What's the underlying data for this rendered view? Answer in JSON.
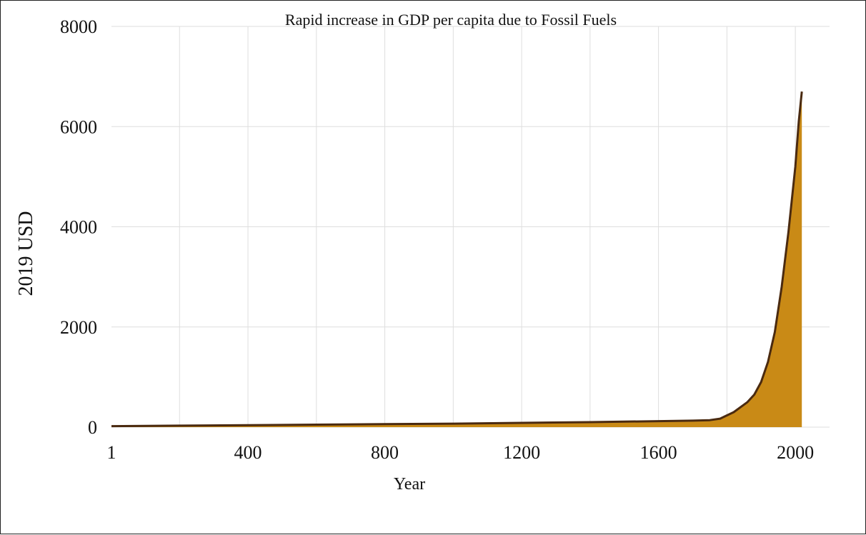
{
  "chart_data": {
    "type": "area",
    "title": "Rapid increase in GDP per capita due to Fossil Fuels",
    "xlabel": "Year",
    "ylabel": "2019 USD",
    "xlim": [
      1,
      2100
    ],
    "ylim": [
      0,
      8000
    ],
    "x_ticks": [
      1,
      400,
      800,
      1200,
      1600,
      2000
    ],
    "y_ticks": [
      0,
      2000,
      4000,
      6000,
      8000
    ],
    "grid": true,
    "series": [
      {
        "x": [
          1,
          200,
          400,
          600,
          800,
          1000,
          1200,
          1400,
          1600,
          1700,
          1750,
          1780,
          1820,
          1860,
          1880,
          1900,
          1920,
          1940,
          1960,
          1980,
          2000,
          2010,
          2019
        ],
        "values": [
          20,
          30,
          40,
          50,
          60,
          70,
          85,
          100,
          120,
          130,
          140,
          170,
          300,
          500,
          650,
          900,
          1300,
          1900,
          2800,
          3900,
          5200,
          6100,
          6700
        ]
      }
    ],
    "colors": {
      "fill": "#c98a16",
      "line": "#4a2a10"
    }
  }
}
